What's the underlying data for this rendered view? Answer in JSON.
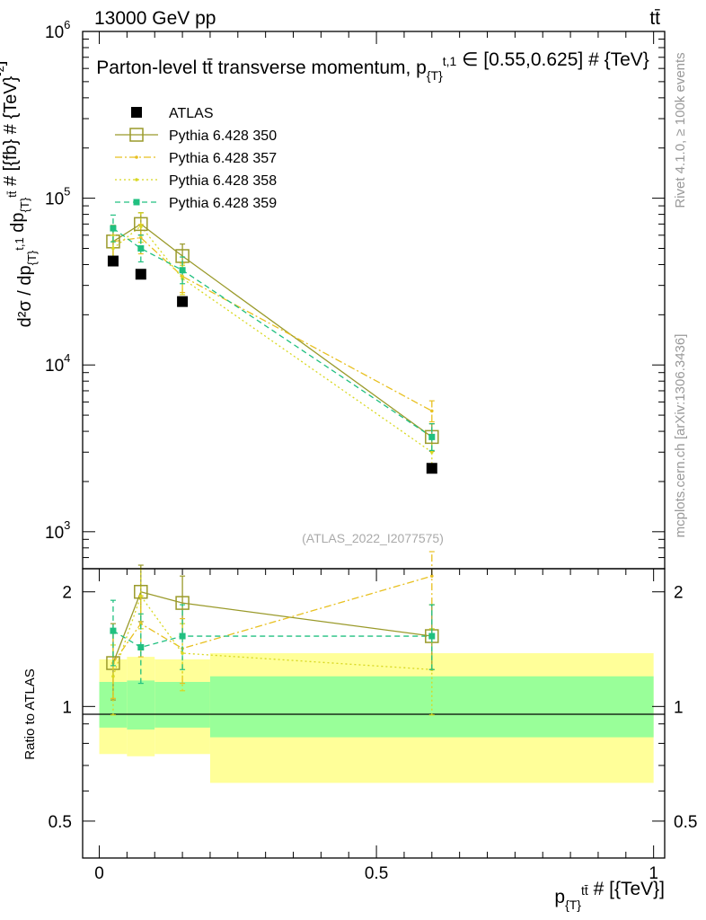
{
  "header": {
    "energy_label": "13000 GeV pp",
    "process_label": "tt̄"
  },
  "side": {
    "rivet_label": "Rivet 4.1.0, ≥ 100k events",
    "mcplots_label": "mcplots.cern.ch [arXiv:1306.3436]"
  },
  "colors": {
    "atlas": "#000000",
    "py350": "#9a9a2a",
    "py357": "#e8c020",
    "py358": "#d8d820",
    "py359": "#20c080",
    "band_yellow": "#ffff99",
    "band_green": "#99ff99"
  },
  "chart_data": {
    "type": "scatter",
    "title": "Parton-level tt̄ transverse momentum, p{T}t,1 ∈ [0.55,0.625] # {TeV}",
    "watermark": "(ATLAS_2022_I2077575)",
    "ylabel": "d²σ / dp{T}t,1 dp{T}tt̄ # [{fb} # {TeV}⁻²]",
    "ratio_ylabel": "Ratio to ATLAS",
    "xlabel": "p{T}tt̄ # [{TeV}]",
    "xlim": [
      -0.03,
      1.02
    ],
    "ylim_main": [
      600,
      1000000
    ],
    "ylim_ratio": [
      0.4,
      2.3
    ],
    "y_scale": "log",
    "x_ticks": [
      "0",
      "0.5",
      "1"
    ],
    "main_y_ticks": [
      {
        "value": 1000,
        "base": "10",
        "exp": "3"
      },
      {
        "value": 10000,
        "base": "10",
        "exp": "4"
      },
      {
        "value": 100000,
        "base": "10",
        "exp": "5"
      },
      {
        "value": 1000000,
        "base": "10",
        "exp": "6"
      }
    ],
    "ratio_y_ticks": [
      {
        "value": 0.5,
        "label": "0.5"
      },
      {
        "value": 1,
        "label": "1"
      },
      {
        "value": 2,
        "label": "2"
      }
    ],
    "bins": [
      {
        "lo": 0.0,
        "hi": 0.05
      },
      {
        "lo": 0.05,
        "hi": 0.1
      },
      {
        "lo": 0.1,
        "hi": 0.2
      },
      {
        "lo": 0.2,
        "hi": 1.0
      }
    ],
    "x": [
      0.025,
      0.075,
      0.15,
      0.6
    ],
    "data": {
      "name": "ATLAS",
      "values": [
        42000,
        35000,
        24000,
        2400
      ]
    },
    "uncertainty_bands": {
      "yellow": [
        [
          0.75,
          1.33
        ],
        [
          0.74,
          1.35
        ],
        [
          0.75,
          1.33
        ],
        [
          0.63,
          1.38
        ]
      ],
      "green": [
        [
          0.88,
          1.16
        ],
        [
          0.87,
          1.17
        ],
        [
          0.88,
          1.16
        ],
        [
          0.83,
          1.2
        ]
      ]
    },
    "series": [
      {
        "name": "Pythia 6.428 350",
        "values": [
          55000,
          70000,
          45000,
          3700
        ],
        "err": [
          [
            0.77,
            1.25
          ],
          [
            0.86,
            1.17
          ],
          [
            0.82,
            1.18
          ],
          [
            0.82,
            1.2
          ]
        ],
        "ratio": [
          1.3,
          2.0,
          1.87,
          1.53
        ],
        "ratio_err": [
          [
            1.04,
            1.65
          ],
          [
            1.67,
            2.35
          ],
          [
            1.54,
            2.2
          ],
          [
            1.25,
            1.85
          ]
        ],
        "style": "solid",
        "marker": "open-square",
        "color_key": "py350"
      },
      {
        "name": "Pythia 6.428 357",
        "values": [
          55000,
          58000,
          34000,
          5300
        ],
        "err": [
          [
            0.8,
            1.2
          ],
          [
            0.8,
            1.2
          ],
          [
            0.8,
            1.2
          ],
          [
            0.86,
            1.15
          ]
        ],
        "ratio": [
          1.3,
          1.65,
          1.42,
          2.2
        ],
        "ratio_err": [
          [
            1.05,
            1.6
          ],
          [
            1.35,
            1.95
          ],
          [
            1.15,
            1.7
          ],
          [
            1.85,
            2.55
          ]
        ],
        "style": "dashdot",
        "marker": "small-dot",
        "color_key": "py357"
      },
      {
        "name": "Pythia 6.428 358",
        "values": [
          50000,
          68000,
          33000,
          3000
        ],
        "err": [
          [
            0.8,
            1.2
          ],
          [
            0.8,
            1.2
          ],
          [
            0.8,
            1.2
          ],
          [
            0.8,
            1.2
          ]
        ],
        "ratio": [
          1.2,
          1.95,
          1.38,
          1.25
        ],
        "ratio_err": [
          [
            0.95,
            1.45
          ],
          [
            1.6,
            2.3
          ],
          [
            1.1,
            1.65
          ],
          [
            0.95,
            1.6
          ]
        ],
        "style": "dotted",
        "marker": "small-dot",
        "color_key": "py358"
      },
      {
        "name": "Pythia 6.428 359",
        "values": [
          66000,
          50000,
          37000,
          3700
        ],
        "err": [
          [
            0.83,
            1.2
          ],
          [
            0.83,
            1.2
          ],
          [
            0.83,
            1.2
          ],
          [
            0.83,
            1.2
          ]
        ],
        "ratio": [
          1.58,
          1.43,
          1.53,
          1.53
        ],
        "ratio_err": [
          [
            1.28,
            1.9
          ],
          [
            1.15,
            1.75
          ],
          [
            1.25,
            1.85
          ],
          [
            1.25,
            1.85
          ]
        ],
        "style": "dashed",
        "marker": "filled-square-small",
        "color_key": "py359"
      }
    ]
  }
}
